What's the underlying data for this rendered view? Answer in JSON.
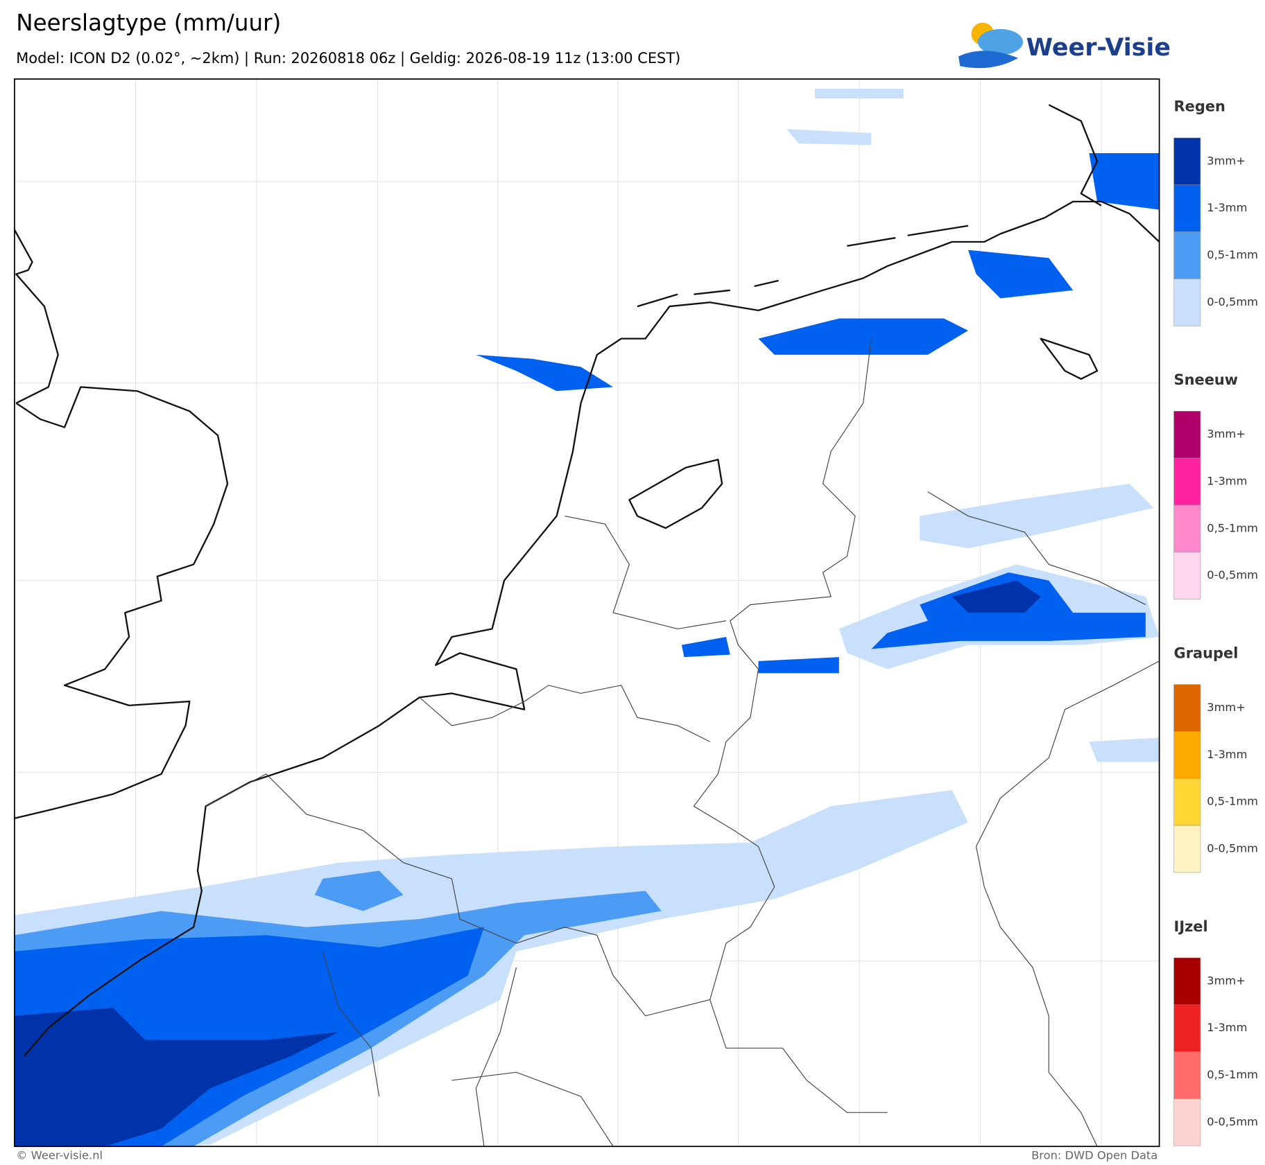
{
  "header": {
    "title": "Neerslagtype (mm/uur)",
    "subtitle": "Model: ICON D2 (0.02°, ~2km)  |  Run: 20260818 06z  |  Geldig: 2026-08-19 11z (13:00 CEST)",
    "logo": "Weer-Visie"
  },
  "legend": [
    {
      "title": "Regen",
      "items": [
        {
          "label": "3mm+",
          "color": "#0033aa"
        },
        {
          "label": "1-3mm",
          "color": "#0060f0"
        },
        {
          "label": "0,5-1mm",
          "color": "#4c9cf5"
        },
        {
          "label": "0-0,5mm",
          "color": "#c8e0fc"
        }
      ]
    },
    {
      "title": "Sneeuw",
      "items": [
        {
          "label": "3mm+",
          "color": "#b0006a"
        },
        {
          "label": "1-3mm",
          "color": "#ff22a0"
        },
        {
          "label": "0,5-1mm",
          "color": "#ff88cc"
        },
        {
          "label": "0-0,5mm",
          "color": "#ffd6ee"
        }
      ]
    },
    {
      "title": "Graupel",
      "items": [
        {
          "label": "3mm+",
          "color": "#dd6600"
        },
        {
          "label": "1-3mm",
          "color": "#ffaa00"
        },
        {
          "label": "0,5-1mm",
          "color": "#ffd633"
        },
        {
          "label": "0-0,5mm",
          "color": "#fff3c4"
        }
      ]
    },
    {
      "title": "IJzel",
      "items": [
        {
          "label": "3mm+",
          "color": "#a80000"
        },
        {
          "label": "1-3mm",
          "color": "#ee2222"
        },
        {
          "label": "0,5-1mm",
          "color": "#ff6b6b"
        },
        {
          "label": "0-0,5mm",
          "color": "#ffd2d2"
        }
      ]
    }
  ],
  "footer": {
    "copyright": "© Weer-visie.nl",
    "source": "Bron: DWD Open Data"
  }
}
